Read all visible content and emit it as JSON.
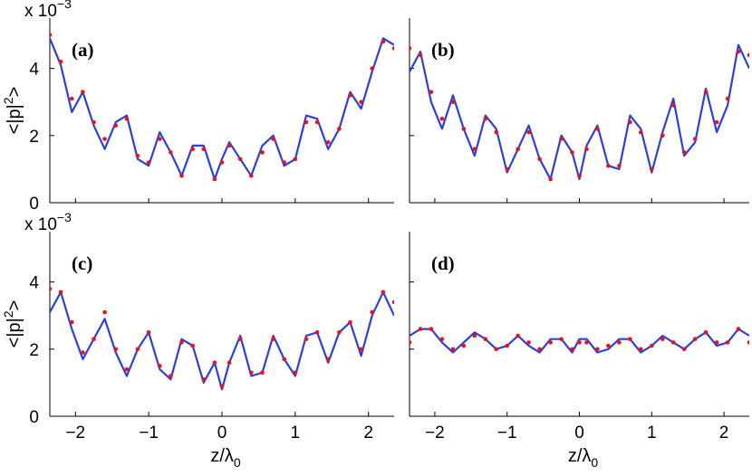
{
  "figure": {
    "colors": {
      "model": "#2b3fe0",
      "data": "#e8141c"
    },
    "y_tick_labels": [
      "0",
      "2",
      "4"
    ],
    "x_tick_labels": [
      "−2",
      "−1",
      "0",
      "1",
      "2"
    ],
    "scale_prefix": "x 10",
    "scale_exponent": "−3",
    "ylabel": "<|p|",
    "ylabel_sup": "2",
    "ylabel_end": ">",
    "xlabel": "z/λ",
    "xlabel_sub": "0"
  },
  "chart_data": [
    {
      "type": "line",
      "panel_label": "(a)",
      "xlim": [
        -2.35,
        2.35
      ],
      "ylim": [
        0,
        0.0055
      ],
      "y_scale_factor": "x 10^-3",
      "series": [
        {
          "kind": "model-line",
          "color": "#2b3fe0",
          "x": [
            -2.35,
            -2.2,
            -2.05,
            -1.9,
            -1.75,
            -1.6,
            -1.45,
            -1.3,
            -1.15,
            -1.0,
            -0.85,
            -0.7,
            -0.55,
            -0.4,
            -0.25,
            -0.1,
            0,
            0.1,
            0.25,
            0.4,
            0.55,
            0.7,
            0.85,
            1.0,
            1.15,
            1.3,
            1.45,
            1.6,
            1.75,
            1.9,
            2.05,
            2.2,
            2.35
          ],
          "y": [
            0.0049,
            0.0041,
            0.0027,
            0.0033,
            0.0023,
            0.0016,
            0.0024,
            0.0026,
            0.0013,
            0.0011,
            0.0021,
            0.0015,
            0.0008,
            0.0017,
            0.0017,
            0.0007,
            0.0013,
            0.0018,
            0.0013,
            0.0008,
            0.0017,
            0.002,
            0.0011,
            0.0013,
            0.0026,
            0.0025,
            0.0016,
            0.0022,
            0.0033,
            0.0028,
            0.0039,
            0.0049,
            0.0047
          ]
        },
        {
          "kind": "measured-points",
          "color": "#e8141c",
          "x": [
            -2.35,
            -2.2,
            -2.05,
            -1.9,
            -1.75,
            -1.6,
            -1.45,
            -1.3,
            -1.15,
            -1.0,
            -0.85,
            -0.7,
            -0.55,
            -0.4,
            -0.25,
            -0.1,
            0,
            0.1,
            0.25,
            0.4,
            0.55,
            0.7,
            0.85,
            1.0,
            1.15,
            1.3,
            1.45,
            1.6,
            1.75,
            1.9,
            2.05,
            2.2,
            2.35
          ],
          "y": [
            0.005,
            0.0042,
            0.0031,
            0.0033,
            0.0024,
            0.0019,
            0.0023,
            0.0025,
            0.0014,
            0.0012,
            0.0019,
            0.0015,
            0.0008,
            0.0016,
            0.0016,
            0.0007,
            0.0012,
            0.0017,
            0.0013,
            0.0008,
            0.0015,
            0.0019,
            0.0012,
            0.0013,
            0.0024,
            0.0024,
            0.0018,
            0.0022,
            0.0032,
            0.003,
            0.004,
            0.0048,
            0.0046
          ]
        }
      ]
    },
    {
      "type": "line",
      "panel_label": "(b)",
      "xlim": [
        -2.35,
        2.35
      ],
      "ylim": [
        0,
        0.0055
      ],
      "series": [
        {
          "kind": "model-line",
          "color": "#2b3fe0",
          "x": [
            -2.35,
            -2.2,
            -2.05,
            -1.9,
            -1.75,
            -1.6,
            -1.45,
            -1.3,
            -1.15,
            -1.0,
            -0.85,
            -0.7,
            -0.55,
            -0.4,
            -0.25,
            -0.1,
            0,
            0.1,
            0.25,
            0.4,
            0.55,
            0.7,
            0.85,
            1.0,
            1.15,
            1.3,
            1.45,
            1.6,
            1.75,
            1.9,
            2.05,
            2.2,
            2.35
          ],
          "y": [
            0.0039,
            0.0045,
            0.003,
            0.0022,
            0.0032,
            0.0022,
            0.0014,
            0.0026,
            0.0022,
            0.0009,
            0.0016,
            0.0023,
            0.0013,
            0.0007,
            0.002,
            0.0015,
            0.0007,
            0.0017,
            0.0023,
            0.0011,
            0.001,
            0.0026,
            0.0022,
            0.0009,
            0.0021,
            0.0031,
            0.0014,
            0.0018,
            0.0034,
            0.0021,
            0.0029,
            0.0047,
            0.004
          ]
        },
        {
          "kind": "measured-points",
          "color": "#e8141c",
          "x": [
            -2.35,
            -2.2,
            -2.05,
            -1.9,
            -1.75,
            -1.6,
            -1.45,
            -1.3,
            -1.15,
            -1.0,
            -0.85,
            -0.7,
            -0.55,
            -0.4,
            -0.25,
            -0.1,
            0,
            0.1,
            0.25,
            0.4,
            0.55,
            0.7,
            0.85,
            1.0,
            1.15,
            1.3,
            1.45,
            1.6,
            1.75,
            1.9,
            2.05,
            2.2,
            2.35
          ],
          "y": [
            0.0046,
            0.0044,
            0.0033,
            0.0025,
            0.003,
            0.0022,
            0.0016,
            0.0025,
            0.0021,
            0.001,
            0.0016,
            0.0021,
            0.0013,
            0.0007,
            0.0019,
            0.0015,
            0.0008,
            0.0016,
            0.0022,
            0.0011,
            0.0011,
            0.0024,
            0.0021,
            0.001,
            0.002,
            0.0029,
            0.0015,
            0.0019,
            0.0033,
            0.0024,
            0.0031,
            0.0045,
            0.0044
          ]
        }
      ]
    },
    {
      "type": "line",
      "panel_label": "(c)",
      "xlim": [
        -2.35,
        2.35
      ],
      "ylim": [
        0,
        0.0055
      ],
      "y_scale_factor": "x 10^-3",
      "series": [
        {
          "kind": "model-line",
          "color": "#2b3fe0",
          "x": [
            -2.35,
            -2.2,
            -2.05,
            -1.9,
            -1.75,
            -1.6,
            -1.45,
            -1.3,
            -1.15,
            -1.0,
            -0.85,
            -0.7,
            -0.55,
            -0.4,
            -0.25,
            -0.1,
            0,
            0.1,
            0.25,
            0.4,
            0.55,
            0.7,
            0.85,
            1.0,
            1.15,
            1.3,
            1.45,
            1.6,
            1.75,
            1.9,
            2.05,
            2.2,
            2.35
          ],
          "y": [
            0.0031,
            0.0037,
            0.0026,
            0.0017,
            0.0023,
            0.0029,
            0.0019,
            0.0012,
            0.002,
            0.0025,
            0.0014,
            0.0011,
            0.0023,
            0.0021,
            0.001,
            0.0016,
            0.0008,
            0.0016,
            0.0024,
            0.0012,
            0.0013,
            0.0024,
            0.0017,
            0.0012,
            0.0024,
            0.0025,
            0.0016,
            0.0025,
            0.0028,
            0.0018,
            0.003,
            0.0037,
            0.003
          ]
        },
        {
          "kind": "measured-points",
          "color": "#e8141c",
          "x": [
            -2.35,
            -2.2,
            -2.05,
            -1.9,
            -1.75,
            -1.6,
            -1.45,
            -1.3,
            -1.15,
            -1.0,
            -0.85,
            -0.7,
            -0.55,
            -0.4,
            -0.25,
            -0.1,
            0,
            0.1,
            0.25,
            0.4,
            0.55,
            0.7,
            0.85,
            1.0,
            1.15,
            1.3,
            1.45,
            1.6,
            1.75,
            1.9,
            2.05,
            2.2,
            2.35
          ],
          "y": [
            0.0038,
            0.0037,
            0.0028,
            0.0019,
            0.0023,
            0.0031,
            0.002,
            0.0014,
            0.002,
            0.0025,
            0.0015,
            0.0012,
            0.0022,
            0.0021,
            0.0011,
            0.0016,
            0.0009,
            0.0016,
            0.0023,
            0.0013,
            0.0013,
            0.0023,
            0.0017,
            0.0013,
            0.0023,
            0.0025,
            0.0017,
            0.0025,
            0.0028,
            0.002,
            0.0031,
            0.0037,
            0.0034
          ]
        }
      ]
    },
    {
      "type": "line",
      "panel_label": "(d)",
      "xlim": [
        -2.35,
        2.35
      ],
      "ylim": [
        0,
        0.0055
      ],
      "series": [
        {
          "kind": "model-line",
          "color": "#2b3fe0",
          "x": [
            -2.35,
            -2.2,
            -2.05,
            -1.9,
            -1.75,
            -1.6,
            -1.45,
            -1.3,
            -1.15,
            -1.0,
            -0.85,
            -0.7,
            -0.55,
            -0.4,
            -0.25,
            -0.1,
            0,
            0.1,
            0.25,
            0.4,
            0.55,
            0.7,
            0.85,
            1.0,
            1.15,
            1.3,
            1.45,
            1.6,
            1.75,
            1.9,
            2.05,
            2.2,
            2.35
          ],
          "y": [
            0.0024,
            0.0026,
            0.0026,
            0.0022,
            0.0019,
            0.0022,
            0.0025,
            0.0023,
            0.002,
            0.0021,
            0.0024,
            0.0021,
            0.0019,
            0.0023,
            0.0023,
            0.0019,
            0.0023,
            0.0023,
            0.0019,
            0.002,
            0.0023,
            0.0023,
            0.0019,
            0.0021,
            0.0024,
            0.0022,
            0.002,
            0.0023,
            0.0025,
            0.0021,
            0.0022,
            0.0026,
            0.0024
          ]
        },
        {
          "kind": "measured-points",
          "color": "#e8141c",
          "x": [
            -2.35,
            -2.2,
            -2.05,
            -1.9,
            -1.75,
            -1.6,
            -1.45,
            -1.3,
            -1.15,
            -1.0,
            -0.85,
            -0.7,
            -0.55,
            -0.4,
            -0.25,
            -0.1,
            0,
            0.1,
            0.25,
            0.4,
            0.55,
            0.7,
            0.85,
            1.0,
            1.15,
            1.3,
            1.45,
            1.6,
            1.75,
            1.9,
            2.05,
            2.2,
            2.35
          ],
          "y": [
            0.0022,
            0.0026,
            0.0026,
            0.0023,
            0.002,
            0.0021,
            0.0024,
            0.0023,
            0.002,
            0.0021,
            0.0024,
            0.0022,
            0.002,
            0.0022,
            0.0023,
            0.002,
            0.0022,
            0.0022,
            0.002,
            0.0021,
            0.0022,
            0.0023,
            0.002,
            0.0021,
            0.0023,
            0.0022,
            0.002,
            0.0023,
            0.0025,
            0.0022,
            0.0022,
            0.0026,
            0.0022
          ]
        }
      ]
    }
  ]
}
